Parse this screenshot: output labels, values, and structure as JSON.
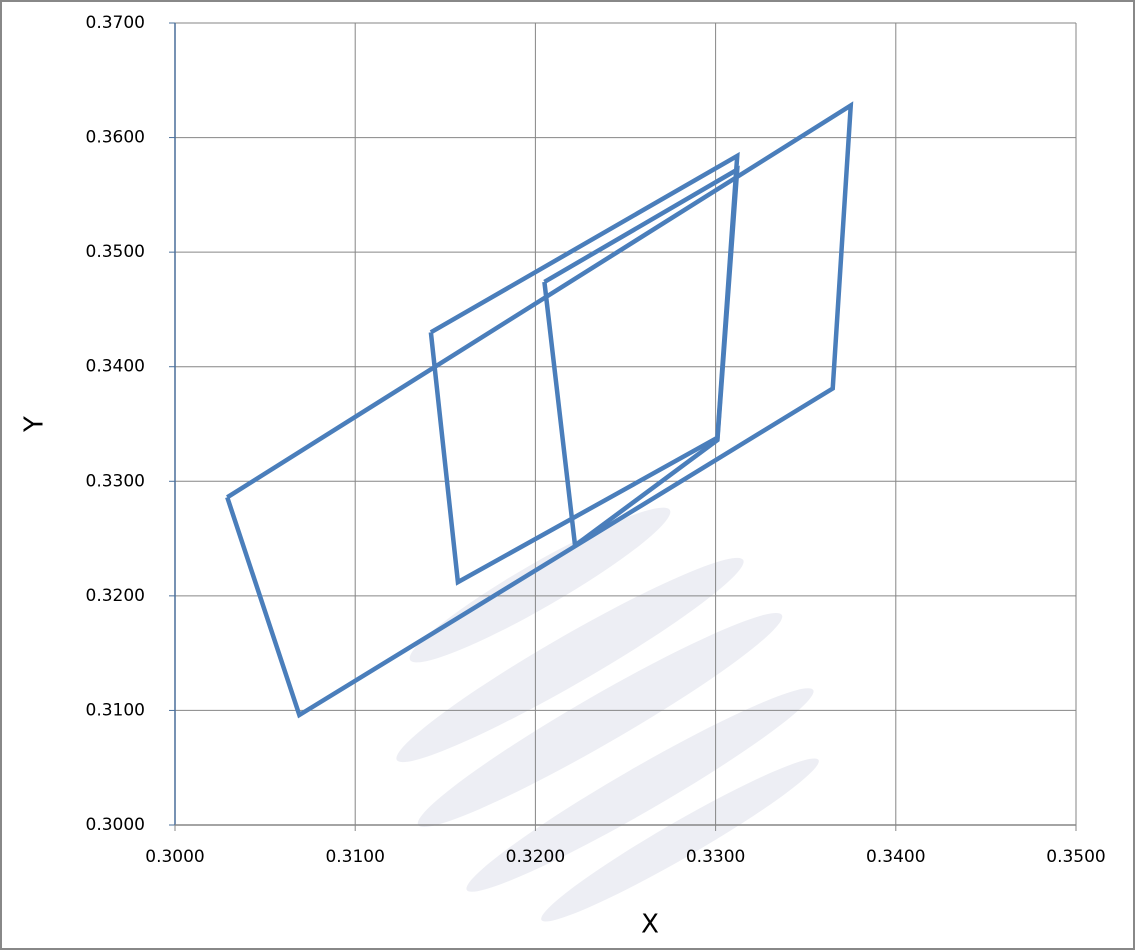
{
  "chart_data": {
    "type": "line",
    "x_label": "X",
    "y_label": "Y",
    "xlim": [
      0.3,
      0.35
    ],
    "xticks": [
      {
        "value": 0.3,
        "label": "0.3000"
      },
      {
        "value": 0.31,
        "label": "0.3100"
      },
      {
        "value": 0.32,
        "label": "0.3200"
      },
      {
        "value": 0.33,
        "label": "0.3300"
      },
      {
        "value": 0.34,
        "label": "0.3400"
      },
      {
        "value": 0.35,
        "label": "0.3500"
      }
    ],
    "ylim": [
      0.3,
      0.37
    ],
    "yticks": [
      {
        "value": 0.3,
        "label": "0.3000"
      },
      {
        "value": 0.31,
        "label": "0.3100"
      },
      {
        "value": 0.32,
        "label": "0.3200"
      },
      {
        "value": 0.33,
        "label": "0.3300"
      },
      {
        "value": 0.34,
        "label": "0.3400"
      },
      {
        "value": 0.35,
        "label": "0.3500"
      },
      {
        "value": 0.36,
        "label": "0.3600"
      },
      {
        "value": 0.37,
        "label": "0.3700"
      }
    ],
    "grid": true,
    "series": [
      {
        "color": "#4a7ebb",
        "x": [
          0.3029,
          0.3069,
          0.3365,
          0.3375,
          0.3029
        ],
        "values": [
          0.3286,
          0.3096,
          0.3381,
          0.3628,
          0.3286
        ]
      },
      {
        "color": "#4a7ebb",
        "x": [
          0.3142,
          0.3157,
          0.3301,
          0.3312,
          0.3142
        ],
        "values": [
          0.343,
          0.3212,
          0.3338,
          0.3584,
          0.343
        ]
      },
      {
        "color": "#4a7ebb",
        "x": [
          0.3205,
          0.3222,
          0.3301,
          0.3312,
          0.3205
        ],
        "values": [
          0.3474,
          0.3244,
          0.3336,
          0.3572,
          0.3474
        ]
      }
    ]
  }
}
